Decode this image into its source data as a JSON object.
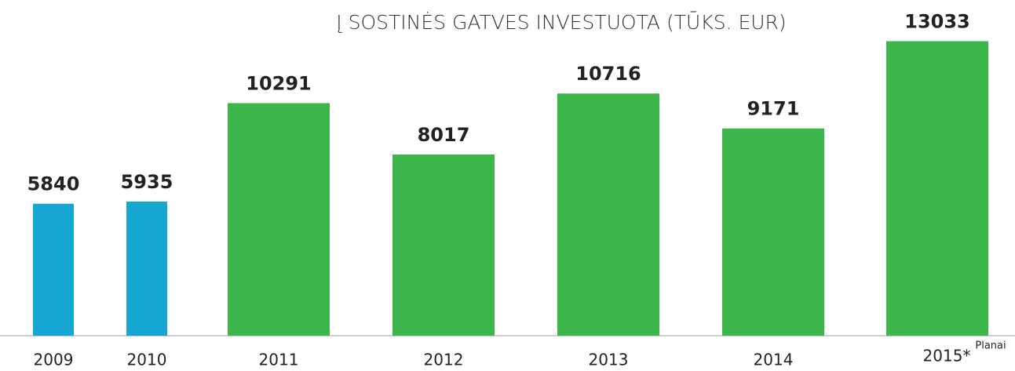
{
  "chart_data": {
    "type": "bar",
    "title": "Į SOSTINĖS GATVES INVESTUOTA (TŪKS. EUR)",
    "categories": [
      "2009",
      "2010",
      "2011",
      "2012",
      "2013",
      "2014",
      "2015*"
    ],
    "values": [
      5840,
      5935,
      10291,
      8017,
      10716,
      9171,
      13033
    ],
    "colors": [
      "#17a5d1",
      "#17a5d1",
      "#3cb64b",
      "#3cb64b",
      "#3cb64b",
      "#3cb64b",
      "#3cb64b"
    ],
    "annotation": "Planai",
    "ylim": [
      0,
      13500
    ]
  }
}
